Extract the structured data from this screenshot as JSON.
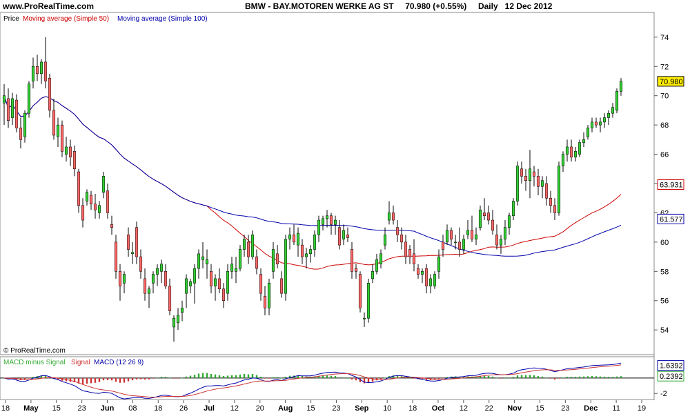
{
  "header": {
    "site": "www.ProRealTime.com",
    "symbol_line": "BMW - BAY.MOTOREN WERKE AG ST     70.980 (+0.55%)     Daily   12 Dec 2012"
  },
  "legend_price": {
    "price": "Price",
    "ma50": "Moving average (Simple 50)",
    "ma100": "Moving average (Simple 100)"
  },
  "legend_macd": {
    "hist": "MACD minus Signal",
    "signal": "Signal",
    "macd": "MACD (12 26 9)"
  },
  "copyright": "© ProRealTime.com",
  "colors": {
    "up": "#33cc33",
    "down": "#ff6666",
    "ma50": "#cc0000",
    "ma100": "#0000aa",
    "last_price_bg": "#ffee00",
    "macd_fill": "#ff9999"
  },
  "chart_data": {
    "type": "candlestick",
    "ylim": [
      52.5,
      75.5
    ],
    "yticks": [
      "54",
      "56",
      "58",
      "60",
      "62",
      "64",
      "66",
      "68",
      "70",
      "72",
      "74"
    ],
    "xticks": [
      "18",
      "May",
      "15",
      "23",
      "Jun",
      "08",
      "18",
      "26",
      "Jul",
      "12",
      "20",
      "Aug",
      "15",
      "23",
      "Sep",
      "10",
      "18",
      "Oct",
      "12",
      "22",
      "Nov",
      "15",
      "23",
      "Dec",
      "11",
      "19"
    ],
    "last_price_label": "70.980",
    "ma50_label": "63.931",
    "ma100_label": "61.577",
    "macd_ylim": [
      -2.7,
      2.5
    ],
    "macd_ticks": [
      "-2"
    ],
    "macd_label": "1.6392",
    "signal_label": "0.2392",
    "candles": [
      {
        "o": 69.5,
        "h": 70.8,
        "l": 68.0,
        "c": 70.0
      },
      {
        "o": 69.8,
        "h": 70.5,
        "l": 67.8,
        "c": 68.3
      },
      {
        "o": 68.5,
        "h": 70.2,
        "l": 68.0,
        "c": 69.8
      },
      {
        "o": 69.7,
        "h": 70.1,
        "l": 67.5,
        "c": 67.8
      },
      {
        "o": 67.8,
        "h": 68.5,
        "l": 66.4,
        "c": 67.0
      },
      {
        "o": 67.2,
        "h": 69.0,
        "l": 66.8,
        "c": 68.8
      },
      {
        "o": 68.8,
        "h": 71.0,
        "l": 68.5,
        "c": 70.8
      },
      {
        "o": 71.0,
        "h": 72.6,
        "l": 70.5,
        "c": 72.0
      },
      {
        "o": 72.0,
        "h": 72.8,
        "l": 71.0,
        "c": 71.5
      },
      {
        "o": 71.5,
        "h": 72.5,
        "l": 70.8,
        "c": 72.3
      },
      {
        "o": 72.3,
        "h": 74.0,
        "l": 70.5,
        "c": 71.0
      },
      {
        "o": 71.2,
        "h": 71.5,
        "l": 68.5,
        "c": 69.0
      },
      {
        "o": 69.0,
        "h": 69.8,
        "l": 67.0,
        "c": 67.3
      },
      {
        "o": 67.2,
        "h": 68.5,
        "l": 66.5,
        "c": 68.0
      },
      {
        "o": 68.0,
        "h": 68.3,
        "l": 65.8,
        "c": 66.2
      },
      {
        "o": 66.0,
        "h": 67.2,
        "l": 65.5,
        "c": 66.5
      },
      {
        "o": 66.5,
        "h": 67.0,
        "l": 65.2,
        "c": 65.8
      },
      {
        "o": 66.2,
        "h": 66.6,
        "l": 64.5,
        "c": 65.0
      },
      {
        "o": 64.8,
        "h": 65.0,
        "l": 62.0,
        "c": 62.5
      },
      {
        "o": 62.5,
        "h": 63.0,
        "l": 61.0,
        "c": 61.5
      },
      {
        "o": 62.8,
        "h": 63.6,
        "l": 62.5,
        "c": 63.4
      },
      {
        "o": 63.2,
        "h": 63.5,
        "l": 62.2,
        "c": 62.6
      },
      {
        "o": 62.6,
        "h": 63.3,
        "l": 61.6,
        "c": 62.2
      },
      {
        "o": 62.0,
        "h": 62.8,
        "l": 61.6,
        "c": 62.5
      },
      {
        "o": 63.4,
        "h": 64.8,
        "l": 63.0,
        "c": 64.5
      },
      {
        "o": 63.5,
        "h": 64.0,
        "l": 61.6,
        "c": 62.0
      },
      {
        "o": 61.2,
        "h": 61.8,
        "l": 60.5,
        "c": 61.0
      },
      {
        "o": 60.0,
        "h": 60.5,
        "l": 57.5,
        "c": 58.0
      },
      {
        "o": 58.0,
        "h": 58.5,
        "l": 56.0,
        "c": 57.0
      },
      {
        "o": 57.2,
        "h": 58.0,
        "l": 56.5,
        "c": 57.8
      },
      {
        "o": 60.5,
        "h": 61.0,
        "l": 59.0,
        "c": 59.5
      },
      {
        "o": 59.2,
        "h": 60.0,
        "l": 58.5,
        "c": 59.3
      },
      {
        "o": 61.0,
        "h": 61.4,
        "l": 58.5,
        "c": 59.0
      },
      {
        "o": 59.0,
        "h": 59.5,
        "l": 57.5,
        "c": 58.0
      },
      {
        "o": 57.5,
        "h": 58.2,
        "l": 56.0,
        "c": 56.5
      },
      {
        "o": 56.5,
        "h": 57.0,
        "l": 55.5,
        "c": 56.8
      },
      {
        "o": 57.2,
        "h": 58.0,
        "l": 56.5,
        "c": 57.8
      },
      {
        "o": 57.8,
        "h": 58.5,
        "l": 57.0,
        "c": 58.2
      },
      {
        "o": 58.0,
        "h": 58.8,
        "l": 57.2,
        "c": 58.5
      },
      {
        "o": 58.0,
        "h": 58.5,
        "l": 56.8,
        "c": 57.0
      },
      {
        "o": 57.0,
        "h": 57.5,
        "l": 55.0,
        "c": 55.3
      },
      {
        "o": 54.2,
        "h": 55.0,
        "l": 53.2,
        "c": 54.8
      },
      {
        "o": 54.5,
        "h": 55.5,
        "l": 54.0,
        "c": 55.0
      },
      {
        "o": 55.2,
        "h": 56.0,
        "l": 54.6,
        "c": 55.5
      },
      {
        "o": 56.5,
        "h": 57.8,
        "l": 55.5,
        "c": 57.5
      },
      {
        "o": 57.0,
        "h": 57.5,
        "l": 56.5,
        "c": 57.3
      },
      {
        "o": 57.2,
        "h": 58.5,
        "l": 55.8,
        "c": 58.2
      },
      {
        "o": 58.2,
        "h": 59.5,
        "l": 57.5,
        "c": 59.2
      },
      {
        "o": 58.8,
        "h": 60.0,
        "l": 58.2,
        "c": 59.0
      },
      {
        "o": 58.5,
        "h": 59.5,
        "l": 57.5,
        "c": 58.8
      },
      {
        "o": 58.0,
        "h": 58.5,
        "l": 56.5,
        "c": 57.0
      },
      {
        "o": 57.0,
        "h": 57.8,
        "l": 56.0,
        "c": 57.5
      },
      {
        "o": 57.5,
        "h": 58.2,
        "l": 56.5,
        "c": 56.8
      },
      {
        "o": 56.8,
        "h": 57.2,
        "l": 55.5,
        "c": 56.0
      },
      {
        "o": 56.5,
        "h": 58.5,
        "l": 56.0,
        "c": 58.0
      },
      {
        "o": 58.0,
        "h": 59.0,
        "l": 57.5,
        "c": 58.5
      },
      {
        "o": 58.0,
        "h": 59.0,
        "l": 57.2,
        "c": 58.2
      },
      {
        "o": 58.2,
        "h": 59.8,
        "l": 58.0,
        "c": 59.5
      },
      {
        "o": 59.5,
        "h": 60.5,
        "l": 59.0,
        "c": 60.2
      },
      {
        "o": 60.0,
        "h": 60.5,
        "l": 58.5,
        "c": 59.0
      },
      {
        "o": 59.0,
        "h": 60.8,
        "l": 58.8,
        "c": 60.5
      },
      {
        "o": 59.0,
        "h": 59.5,
        "l": 57.8,
        "c": 58.2
      },
      {
        "o": 57.8,
        "h": 58.2,
        "l": 56.0,
        "c": 56.5
      },
      {
        "o": 56.3,
        "h": 57.0,
        "l": 55.0,
        "c": 55.5
      },
      {
        "o": 55.5,
        "h": 57.5,
        "l": 55.0,
        "c": 57.2
      },
      {
        "o": 58.0,
        "h": 60.0,
        "l": 57.5,
        "c": 59.5
      },
      {
        "o": 59.2,
        "h": 59.8,
        "l": 58.2,
        "c": 58.5
      },
      {
        "o": 57.5,
        "h": 58.0,
        "l": 56.2,
        "c": 56.5
      },
      {
        "o": 56.5,
        "h": 60.5,
        "l": 56.0,
        "c": 60.2
      },
      {
        "o": 60.2,
        "h": 61.0,
        "l": 59.5,
        "c": 60.5
      },
      {
        "o": 60.5,
        "h": 61.2,
        "l": 59.8,
        "c": 60.0
      },
      {
        "o": 59.8,
        "h": 61.0,
        "l": 59.0,
        "c": 60.6
      },
      {
        "o": 59.8,
        "h": 60.2,
        "l": 58.5,
        "c": 59.0
      },
      {
        "o": 59.0,
        "h": 59.6,
        "l": 58.2,
        "c": 59.2
      },
      {
        "o": 59.2,
        "h": 59.8,
        "l": 58.6,
        "c": 59.5
      },
      {
        "o": 59.5,
        "h": 60.8,
        "l": 59.0,
        "c": 60.5
      },
      {
        "o": 60.5,
        "h": 61.8,
        "l": 60.0,
        "c": 61.5
      },
      {
        "o": 61.2,
        "h": 61.8,
        "l": 60.8,
        "c": 61.6
      },
      {
        "o": 61.6,
        "h": 62.2,
        "l": 61.0,
        "c": 61.8
      },
      {
        "o": 61.8,
        "h": 62.0,
        "l": 60.5,
        "c": 61.2
      },
      {
        "o": 61.2,
        "h": 61.8,
        "l": 60.5,
        "c": 61.5
      },
      {
        "o": 61.0,
        "h": 61.5,
        "l": 59.5,
        "c": 59.8
      },
      {
        "o": 60.2,
        "h": 61.2,
        "l": 59.8,
        "c": 60.8
      },
      {
        "o": 60.5,
        "h": 61.0,
        "l": 60.0,
        "c": 60.3
      },
      {
        "o": 59.5,
        "h": 60.0,
        "l": 57.5,
        "c": 58.0
      },
      {
        "o": 58.2,
        "h": 58.5,
        "l": 57.5,
        "c": 58.0
      },
      {
        "o": 57.8,
        "h": 58.0,
        "l": 55.2,
        "c": 55.5
      },
      {
        "o": 54.8,
        "h": 55.2,
        "l": 54.2,
        "c": 54.8
      },
      {
        "o": 54.8,
        "h": 57.5,
        "l": 54.5,
        "c": 57.2
      },
      {
        "o": 57.5,
        "h": 58.5,
        "l": 57.2,
        "c": 58.0
      },
      {
        "o": 58.0,
        "h": 59.2,
        "l": 57.8,
        "c": 58.8
      },
      {
        "o": 58.5,
        "h": 59.5,
        "l": 58.2,
        "c": 59.2
      },
      {
        "o": 59.8,
        "h": 61.0,
        "l": 59.5,
        "c": 60.5
      },
      {
        "o": 61.5,
        "h": 62.8,
        "l": 61.2,
        "c": 62.0
      },
      {
        "o": 62.0,
        "h": 62.5,
        "l": 61.2,
        "c": 61.5
      },
      {
        "o": 61.0,
        "h": 61.5,
        "l": 60.0,
        "c": 60.5
      },
      {
        "o": 60.5,
        "h": 61.0,
        "l": 59.5,
        "c": 60.0
      },
      {
        "o": 60.0,
        "h": 60.5,
        "l": 58.5,
        "c": 59.0
      },
      {
        "o": 59.5,
        "h": 59.8,
        "l": 58.5,
        "c": 59.0
      },
      {
        "o": 59.2,
        "h": 60.2,
        "l": 58.0,
        "c": 58.5
      },
      {
        "o": 58.2,
        "h": 58.5,
        "l": 57.5,
        "c": 57.8
      },
      {
        "o": 57.8,
        "h": 58.2,
        "l": 57.2,
        "c": 58.0
      },
      {
        "o": 58.2,
        "h": 58.5,
        "l": 56.5,
        "c": 57.0
      },
      {
        "o": 57.0,
        "h": 57.8,
        "l": 56.5,
        "c": 57.5
      },
      {
        "o": 57.0,
        "h": 58.0,
        "l": 56.8,
        "c": 57.8
      },
      {
        "o": 58.0,
        "h": 59.5,
        "l": 57.5,
        "c": 59.0
      },
      {
        "o": 60.0,
        "h": 60.5,
        "l": 59.0,
        "c": 59.5
      },
      {
        "o": 60.0,
        "h": 61.2,
        "l": 59.8,
        "c": 60.8
      },
      {
        "o": 60.8,
        "h": 61.0,
        "l": 59.8,
        "c": 60.2
      },
      {
        "o": 60.0,
        "h": 60.5,
        "l": 59.5,
        "c": 60.0
      },
      {
        "o": 60.0,
        "h": 61.0,
        "l": 59.0,
        "c": 59.5
      },
      {
        "o": 59.5,
        "h": 60.5,
        "l": 59.2,
        "c": 60.2
      },
      {
        "o": 60.5,
        "h": 61.5,
        "l": 60.2,
        "c": 60.8
      },
      {
        "o": 60.8,
        "h": 61.8,
        "l": 60.0,
        "c": 60.2
      },
      {
        "o": 60.2,
        "h": 61.0,
        "l": 59.8,
        "c": 60.5
      },
      {
        "o": 61.0,
        "h": 62.5,
        "l": 60.8,
        "c": 62.2
      },
      {
        "o": 62.0,
        "h": 63.0,
        "l": 61.5,
        "c": 61.8
      },
      {
        "o": 62.0,
        "h": 62.5,
        "l": 61.2,
        "c": 61.5
      },
      {
        "o": 61.5,
        "h": 62.2,
        "l": 60.5,
        "c": 60.8
      },
      {
        "o": 60.5,
        "h": 61.2,
        "l": 59.5,
        "c": 59.8
      },
      {
        "o": 59.8,
        "h": 60.5,
        "l": 59.2,
        "c": 60.2
      },
      {
        "o": 60.2,
        "h": 61.5,
        "l": 59.8,
        "c": 61.0
      },
      {
        "o": 61.0,
        "h": 62.0,
        "l": 60.5,
        "c": 61.8
      },
      {
        "o": 61.8,
        "h": 63.0,
        "l": 61.5,
        "c": 62.8
      },
      {
        "o": 62.8,
        "h": 65.5,
        "l": 62.5,
        "c": 65.2
      },
      {
        "o": 65.0,
        "h": 65.5,
        "l": 64.0,
        "c": 64.5
      },
      {
        "o": 64.5,
        "h": 65.0,
        "l": 63.5,
        "c": 64.2
      },
      {
        "o": 64.2,
        "h": 66.3,
        "l": 63.0,
        "c": 65.0
      },
      {
        "o": 64.8,
        "h": 65.2,
        "l": 63.8,
        "c": 64.5
      },
      {
        "o": 64.5,
        "h": 65.0,
        "l": 63.2,
        "c": 63.8
      },
      {
        "o": 63.8,
        "h": 64.5,
        "l": 63.0,
        "c": 64.2
      },
      {
        "o": 64.0,
        "h": 64.5,
        "l": 62.5,
        "c": 63.0
      },
      {
        "o": 63.0,
        "h": 63.5,
        "l": 62.0,
        "c": 62.5
      },
      {
        "o": 62.5,
        "h": 63.0,
        "l": 61.5,
        "c": 62.0
      },
      {
        "o": 62.0,
        "h": 65.5,
        "l": 61.8,
        "c": 65.2
      },
      {
        "o": 65.2,
        "h": 66.2,
        "l": 64.8,
        "c": 66.0
      },
      {
        "o": 66.0,
        "h": 67.0,
        "l": 65.5,
        "c": 66.5
      },
      {
        "o": 66.5,
        "h": 67.0,
        "l": 65.5,
        "c": 65.8
      },
      {
        "o": 65.8,
        "h": 66.5,
        "l": 65.5,
        "c": 66.2
      },
      {
        "o": 66.0,
        "h": 67.0,
        "l": 65.8,
        "c": 66.8
      },
      {
        "o": 66.8,
        "h": 67.5,
        "l": 66.5,
        "c": 67.0
      },
      {
        "o": 67.2,
        "h": 68.0,
        "l": 67.0,
        "c": 67.8
      },
      {
        "o": 67.8,
        "h": 68.5,
        "l": 67.5,
        "c": 68.2
      },
      {
        "o": 68.2,
        "h": 68.5,
        "l": 67.8,
        "c": 68.0
      },
      {
        "o": 68.0,
        "h": 68.5,
        "l": 67.5,
        "c": 68.2
      },
      {
        "o": 68.2,
        "h": 68.8,
        "l": 67.8,
        "c": 68.5
      },
      {
        "o": 68.5,
        "h": 69.0,
        "l": 68.0,
        "c": 68.8
      },
      {
        "o": 68.8,
        "h": 69.5,
        "l": 68.5,
        "c": 69.2
      },
      {
        "o": 69.0,
        "h": 70.5,
        "l": 68.8,
        "c": 70.3
      },
      {
        "o": 70.3,
        "h": 71.2,
        "l": 70.0,
        "c": 70.98
      }
    ]
  }
}
